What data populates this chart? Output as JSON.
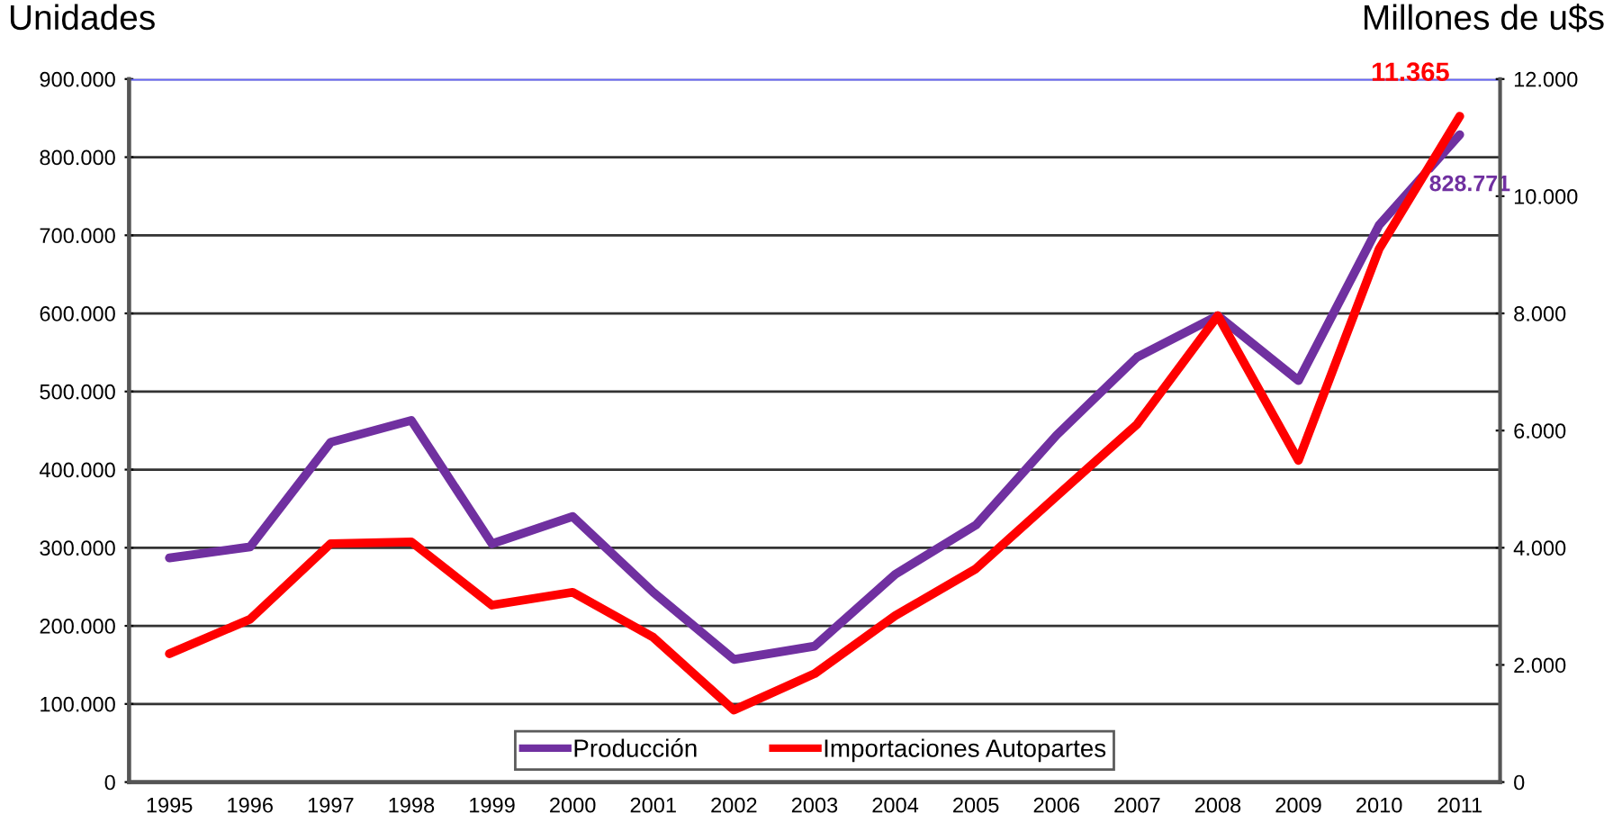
{
  "chart_data": {
    "type": "line",
    "ylabel": "Unidades",
    "y2label": "Millones de u$s",
    "categories": [
      "1995",
      "1996",
      "1997",
      "1998",
      "1999",
      "2000",
      "2001",
      "2002",
      "2003",
      "2004",
      "2005",
      "2006",
      "2007",
      "2008",
      "2009",
      "2010",
      "2011"
    ],
    "series": [
      {
        "name": "Producción",
        "color": "#7030a0",
        "values": [
          287000,
          301000,
          435000,
          463000,
          305000,
          340000,
          243000,
          157000,
          174000,
          266000,
          329000,
          444000,
          544000,
          597000,
          514000,
          713000,
          828771
        ],
        "value_labels": [
          null,
          null,
          null,
          null,
          null,
          null,
          null,
          null,
          null,
          null,
          null,
          null,
          null,
          null,
          null,
          null,
          "828.771"
        ]
      },
      {
        "name": "Importaciones Autopartes",
        "color": "#ff0000",
        "axis": "y2",
        "values": [
          2190,
          2780,
          4070,
          4100,
          3020,
          3240,
          2470,
          1230,
          1850,
          2840,
          3640,
          4880,
          6110,
          7960,
          5490,
          9100,
          11365
        ],
        "value_labels": [
          null,
          null,
          null,
          null,
          null,
          null,
          null,
          null,
          null,
          null,
          null,
          null,
          null,
          null,
          null,
          null,
          "11.365"
        ]
      }
    ],
    "ylim": [
      0,
      900000
    ],
    "yticks": [
      0,
      {
        "value": 100000,
        "label": "100.000"
      },
      {
        "value": 200000,
        "label": "200.000"
      },
      {
        "value": 300000,
        "label": "300.000"
      },
      {
        "value": 400000,
        "label": "400.000"
      },
      {
        "value": 500000,
        "label": "500.000"
      },
      {
        "value": 600000,
        "label": "600.000"
      },
      {
        "value": 700000,
        "label": "700.000"
      },
      {
        "value": 800000,
        "label": "800.000"
      },
      {
        "value": 900000,
        "label": "900.000"
      }
    ],
    "y2lim": [
      0,
      12000
    ],
    "y2ticks": [
      0,
      {
        "value": 2000,
        "label": "2.000"
      },
      {
        "value": 4000,
        "label": "4.000"
      },
      {
        "value": 6000,
        "label": "6.000"
      },
      {
        "value": 8000,
        "label": "8.000"
      },
      {
        "value": 10000,
        "label": "10.000"
      },
      {
        "value": 12000,
        "label": "12.000"
      }
    ],
    "ref_lines": [
      {
        "axis": "y",
        "value": 900000,
        "color": "#6666ff"
      }
    ],
    "grid": "y",
    "legend": "bottom",
    "marker": "none",
    "line_style": "solid"
  }
}
